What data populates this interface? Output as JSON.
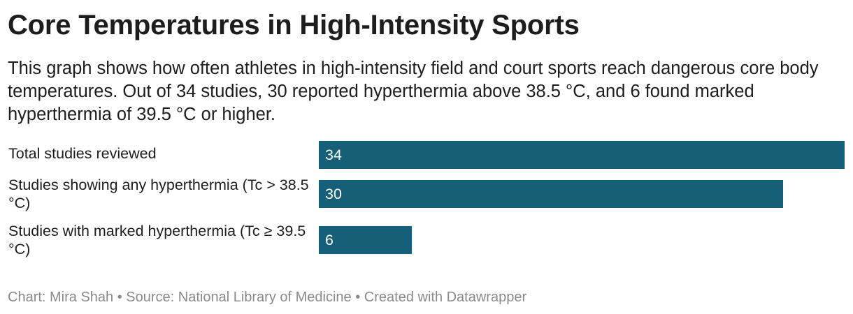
{
  "header": {
    "title": "Core Temperatures in High-Intensity Sports",
    "subtitle": "This graph shows how often athletes in high-intensity field and court sports reach dangerous core body temperatures. Out of 34 studies, 30 reported hyperthermia above 38.5 °C, and 6 found marked hyperthermia of 39.5 °C or higher."
  },
  "footer": {
    "credit": "Chart: Mira Shah • Source: National Library of Medicine • Created with Datawrapper"
  },
  "colors": {
    "bar": "#165f78",
    "value_text": "#ffffff"
  },
  "chart_data": {
    "type": "bar",
    "orientation": "horizontal",
    "title": "Core Temperatures in High-Intensity Sports",
    "categories": [
      "Total studies reviewed",
      "Studies showing any hyperthermia (Tc > 38.5 °C)",
      "Studies with marked hyperthermia (Tc ≥ 39.5 °C)"
    ],
    "values": [
      34,
      30,
      6
    ],
    "value_labels": [
      "34",
      "30",
      "6"
    ],
    "xlim": [
      0,
      34
    ],
    "grid": false,
    "legend": "none"
  }
}
